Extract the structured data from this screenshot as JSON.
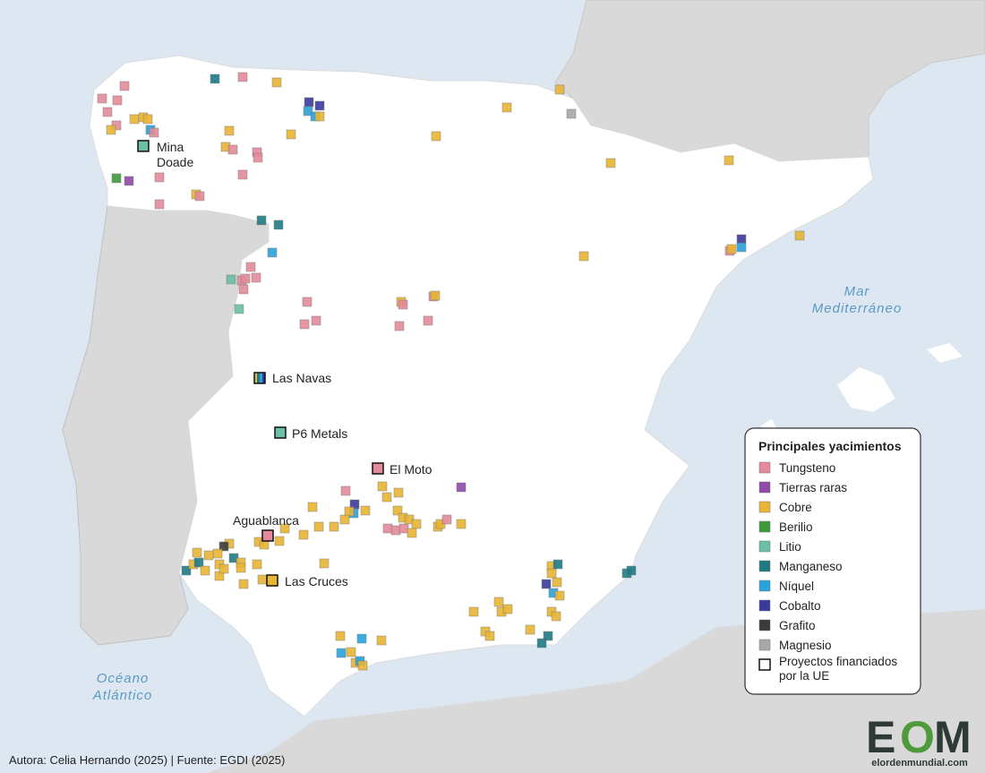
{
  "place_labels": [
    {
      "lines": [
        "Mina",
        "Doade"
      ],
      "color": "#6bbfa6"
    },
    {
      "lines": [
        "Las Navas"
      ],
      "color": "#e8b534"
    },
    {
      "lines": [
        "P6 Metals"
      ],
      "color": "#6bbfa6"
    },
    {
      "lines": [
        "El Moto"
      ],
      "color": "#e48a9a"
    },
    {
      "lines": [
        "Aguablanca"
      ],
      "color": "#e48a9a"
    },
    {
      "lines": [
        "Las Cruces"
      ],
      "color": "#e8b534"
    }
  ],
  "sea_labels": [
    {
      "lines": [
        "Mar",
        "Mediterráneo"
      ]
    },
    {
      "lines": [
        "Océano",
        "Atlántico"
      ]
    }
  ],
  "legend": {
    "title": "Principales yacimientos",
    "items": [
      {
        "name": "Tungsteno",
        "color": "#e48a9a"
      },
      {
        "name": "Tierras raras",
        "color": "#8e4aa6"
      },
      {
        "name": "Cobre",
        "color": "#e8b534"
      },
      {
        "name": "Berilio",
        "color": "#3c9a3c"
      },
      {
        "name": "Litio",
        "color": "#6bbfa6"
      },
      {
        "name": "Manganeso",
        "color": "#1f7a85"
      },
      {
        "name": "Níquel",
        "color": "#2aa3dc"
      },
      {
        "name": "Cobalto",
        "color": "#3a3a9a"
      },
      {
        "name": "Grafito",
        "color": "#3a3a3a"
      },
      {
        "name": "Magnesio",
        "color": "#a8a8a8"
      }
    ],
    "eu_label": [
      "Proyectos financiados",
      "por la UE"
    ]
  },
  "footer": "Autora: Celia Hernando (2025) | Fuente: EGDI  (2025)",
  "logo": {
    "letters": [
      "E",
      "O",
      "M"
    ],
    "site": "elordenmundial.com"
  }
}
